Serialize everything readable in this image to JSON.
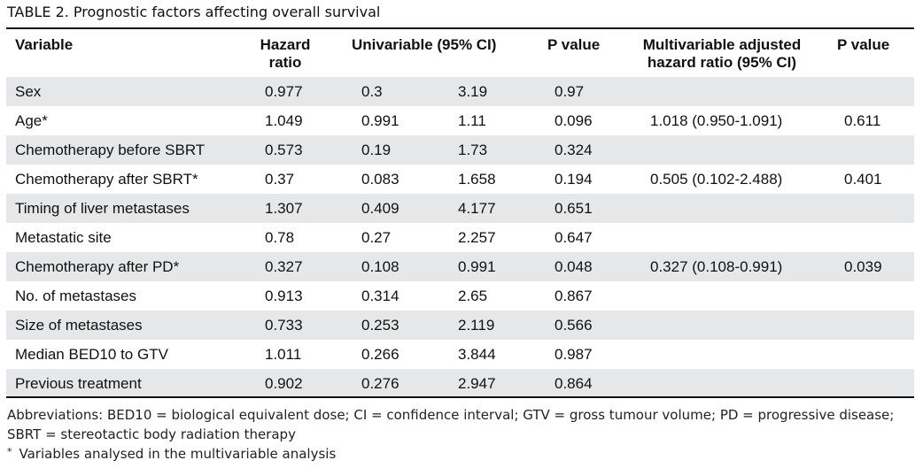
{
  "caption": "TABLE 2.  Prognostic factors affecting overall survival",
  "headers": {
    "variable": "Variable",
    "hazard_ratio_line1": "Hazard",
    "hazard_ratio_line2": "ratio",
    "univariable": "Univariable (95% CI)",
    "p_value": "P value",
    "multivariable_line1": "Multivariable adjusted",
    "multivariable_line2": "hazard ratio (95% CI)",
    "p_value2": "P value"
  },
  "rows": [
    {
      "variable": "Sex",
      "hr": "0.977",
      "ci_low": "0.3",
      "ci_high": "3.19",
      "p": "0.97",
      "multi": "",
      "p2": ""
    },
    {
      "variable": "Age*",
      "hr": "1.049",
      "ci_low": "0.991",
      "ci_high": "1.11",
      "p": "0.096",
      "multi": "1.018 (0.950-1.091)",
      "p2": "0.611"
    },
    {
      "variable": "Chemotherapy before SBRT",
      "hr": "0.573",
      "ci_low": "0.19",
      "ci_high": "1.73",
      "p": "0.324",
      "multi": "",
      "p2": ""
    },
    {
      "variable": "Chemotherapy after SBRT*",
      "hr": "0.37",
      "ci_low": "0.083",
      "ci_high": "1.658",
      "p": "0.194",
      "multi": "0.505 (0.102-2.488)",
      "p2": "0.401"
    },
    {
      "variable": "Timing of liver metastases",
      "hr": "1.307",
      "ci_low": "0.409",
      "ci_high": "4.177",
      "p": "0.651",
      "multi": "",
      "p2": ""
    },
    {
      "variable": "Metastatic site",
      "hr": "0.78",
      "ci_low": "0.27",
      "ci_high": "2.257",
      "p": "0.647",
      "multi": "",
      "p2": ""
    },
    {
      "variable": "Chemotherapy after PD*",
      "hr": "0.327",
      "ci_low": "0.108",
      "ci_high": "0.991",
      "p": "0.048",
      "multi": "0.327 (0.108-0.991)",
      "p2": "0.039"
    },
    {
      "variable": "No. of metastases",
      "hr": "0.913",
      "ci_low": "0.314",
      "ci_high": "2.65",
      "p": "0.867",
      "multi": "",
      "p2": ""
    },
    {
      "variable": "Size of metastases",
      "hr": "0.733",
      "ci_low": "0.253",
      "ci_high": "2.119",
      "p": "0.566",
      "multi": "",
      "p2": ""
    },
    {
      "variable": "Median BED10 to GTV",
      "hr": "1.011",
      "ci_low": "0.266",
      "ci_high": "3.844",
      "p": "0.987",
      "multi": "",
      "p2": ""
    },
    {
      "variable": "Previous treatment",
      "hr": "0.902",
      "ci_low": "0.276",
      "ci_high": "2.947",
      "p": "0.864",
      "multi": "",
      "p2": ""
    }
  ],
  "footnotes": {
    "abbreviations": "Abbreviations: BED10 = biological equivalent dose; CI = confidence interval; GTV = gross tumour volume; PD = progressive disease; SBRT = stereotactic body radiation therapy",
    "star_symbol": "*",
    "star_note": "Variables analysed in the multivariable analysis"
  },
  "colors": {
    "shaded_row": "#e6e7e8",
    "text": "#111111"
  }
}
